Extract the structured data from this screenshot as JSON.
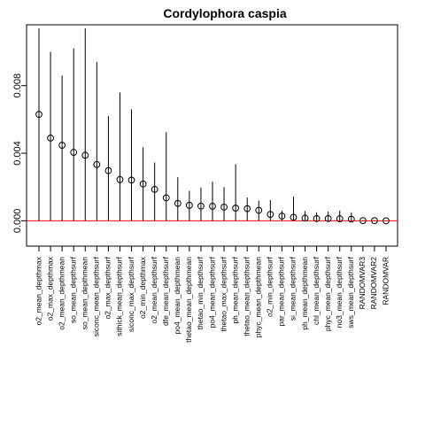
{
  "chart_data": {
    "type": "scatter",
    "title": "Cordylophora caspia",
    "xlabel": "",
    "ylabel": "",
    "ylim": [
      -0.0015,
      0.0116
    ],
    "yticks": [
      0.0,
      0.004,
      0.008
    ],
    "ytick_labels": [
      "0.000",
      "0.004",
      "0.008"
    ],
    "reference_line": {
      "value": 0.0,
      "color": "#ff0000"
    },
    "point_color": "#000000",
    "categories": [
      "o2_mean_depthmax",
      "o2_max_depthmax",
      "o2_mean_depthmean",
      "so_mean_depthsurf",
      "so_mean_depthmean",
      "siconc_mean_depthsurf",
      "o2_max_depthsurf",
      "sithick_mean_depthsurf",
      "siconc_max_depthsurf",
      "o2_min_depthmax",
      "o2_mean_depthsurf",
      "dfe_mean_depthsurf",
      "po4_mean_depthmean",
      "thetao_mean_depthmean",
      "thetao_min_depthsurf",
      "po4_mean_depthsurf",
      "thetao_max_depthsurf",
      "ph_mean_depthsurf",
      "thetao_mean_depthsurf",
      "phyc_mean_depthmean",
      "o2_min_depthsurf",
      "par_mean_depthsurf",
      "si_mean_depthsurf",
      "ph_mean_depthmean",
      "chl_mean_depthsurf",
      "phyc_mean_depthsurf",
      "no3_mean_depthsurf",
      "sws_mean_depthsurf",
      "RANDOMVAR3",
      "RANDOMVAR2",
      "RANDOMVAR"
    ],
    "values": [
      0.0063,
      0.0049,
      0.00447,
      0.00405,
      0.00388,
      0.00333,
      0.00297,
      0.00244,
      0.00241,
      0.00218,
      0.00186,
      0.00136,
      0.00103,
      0.00092,
      0.00087,
      0.00086,
      0.00081,
      0.00075,
      0.00072,
      0.00062,
      0.00038,
      0.00028,
      0.00021,
      0.00016,
      0.00013,
      0.00013,
      0.00012,
      0.0001,
      1e-05,
      1e-05,
      0.0
    ],
    "upper": [
      0.0114,
      0.01,
      0.0086,
      0.0102,
      0.0114,
      0.0094,
      0.0062,
      0.0076,
      0.0066,
      0.00435,
      0.00345,
      0.00525,
      0.00258,
      0.00178,
      0.00197,
      0.00232,
      0.002,
      0.00335,
      0.00138,
      0.0012,
      0.00123,
      0.0006,
      0.00143,
      0.00058,
      0.0005,
      0.00055,
      0.0006,
      0.0005,
      4e-05,
      4e-05,
      2e-05
    ],
    "lower": [
      0.0,
      0.0,
      0.0,
      0.0,
      0.0,
      0.0,
      0.0,
      0.0,
      0.0,
      0.0,
      0.0,
      0.0,
      0.0,
      0.0,
      0.0,
      0.0,
      0.0,
      0.0,
      0.0,
      0.0,
      0.0,
      0.0,
      0.0,
      0.0,
      0.0,
      0.0,
      0.0,
      0.0,
      0.0,
      0.0,
      0.0
    ]
  }
}
